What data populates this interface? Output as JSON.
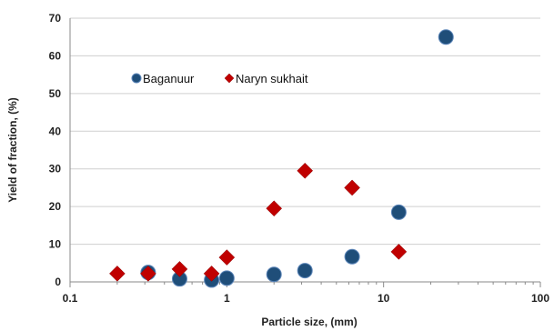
{
  "chart_data": {
    "type": "scatter",
    "xlabel": "Particle size, (mm)",
    "ylabel": "Yield of fraction, (%)",
    "x_scale": "log",
    "xlim": [
      0.1,
      100
    ],
    "ylim": [
      0,
      70
    ],
    "x_ticks": [
      0.1,
      1,
      10,
      100
    ],
    "x_tick_labels": [
      "0.1",
      "1",
      "10",
      "100"
    ],
    "y_ticks": [
      0,
      10,
      20,
      30,
      40,
      50,
      60,
      70
    ],
    "y_tick_labels": [
      "0",
      "10",
      "20",
      "30",
      "40",
      "50",
      "60",
      "70"
    ],
    "grid": "horizontal",
    "legend_position": "top-left",
    "series": [
      {
        "name": "Baganuur",
        "marker": "circle",
        "color": "#1F4E79",
        "points": [
          {
            "x": 0.315,
            "y": 2.5
          },
          {
            "x": 0.5,
            "y": 0.8
          },
          {
            "x": 0.8,
            "y": 0.5
          },
          {
            "x": 1.0,
            "y": 1.0
          },
          {
            "x": 2.0,
            "y": 2.0
          },
          {
            "x": 3.15,
            "y": 3.0
          },
          {
            "x": 6.3,
            "y": 6.7
          },
          {
            "x": 12.5,
            "y": 18.5
          },
          {
            "x": 25.0,
            "y": 65.0
          }
        ]
      },
      {
        "name": "Naryn sukhait",
        "marker": "diamond",
        "color": "#C00000",
        "points": [
          {
            "x": 0.2,
            "y": 2.2
          },
          {
            "x": 0.315,
            "y": 2.2
          },
          {
            "x": 0.5,
            "y": 3.4
          },
          {
            "x": 0.8,
            "y": 2.2
          },
          {
            "x": 1.0,
            "y": 6.5
          },
          {
            "x": 2.0,
            "y": 19.5
          },
          {
            "x": 3.15,
            "y": 29.5
          },
          {
            "x": 6.3,
            "y": 25.0
          },
          {
            "x": 12.5,
            "y": 8.0
          }
        ]
      }
    ]
  }
}
